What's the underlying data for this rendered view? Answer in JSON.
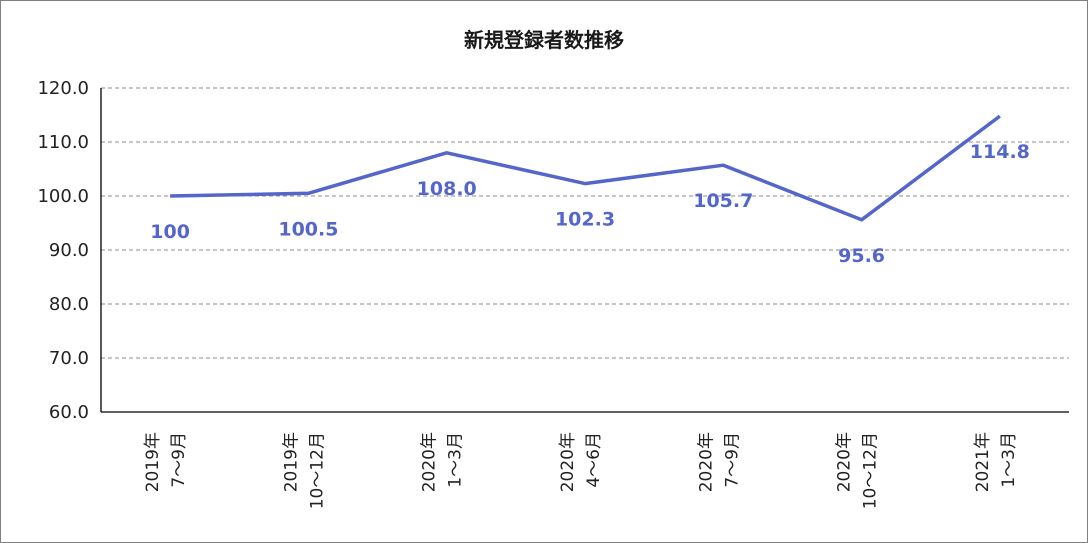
{
  "chart_data": {
    "type": "line",
    "title": "新規登録者数推移",
    "xlabel": "",
    "ylabel": "",
    "ylim": [
      60,
      120
    ],
    "y_ticks": [
      "60.0",
      "70.0",
      "80.0",
      "90.0",
      "100.0",
      "110.0",
      "120.0"
    ],
    "grid": true,
    "legend": "none",
    "categories": [
      [
        "2019年",
        "7～9月"
      ],
      [
        "2019年",
        "10～12月"
      ],
      [
        "2020年",
        "1～3月"
      ],
      [
        "2020年",
        "4～6月"
      ],
      [
        "2020年",
        "7～9月"
      ],
      [
        "2020年",
        "10～12月"
      ],
      [
        "2021年",
        "1～3月"
      ]
    ],
    "series": [
      {
        "values": [
          100,
          100.5,
          108.0,
          102.3,
          105.7,
          95.6,
          114.8
        ],
        "labels": [
          "100",
          "100.5",
          "108.0",
          "102.3",
          "105.7",
          "95.6",
          "114.8"
        ],
        "color": "#5466c9"
      }
    ]
  }
}
